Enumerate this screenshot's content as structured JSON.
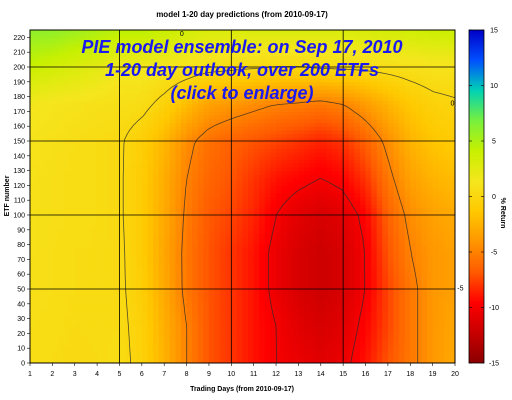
{
  "chart_data": {
    "type": "heatmap",
    "title": "model 1-20 day predictions (from 2010-09-17)",
    "xlabel": "Trading Days (from 2010-09-17)",
    "ylabel": "ETF number",
    "colorbar_label": "% Return",
    "xlim": [
      1,
      20
    ],
    "ylim": [
      0,
      225
    ],
    "x_ticks": [
      1,
      2,
      3,
      4,
      5,
      6,
      7,
      8,
      9,
      10,
      11,
      12,
      13,
      14,
      15,
      16,
      17,
      18,
      19,
      20
    ],
    "y_ticks": [
      0,
      10,
      20,
      30,
      40,
      50,
      60,
      70,
      80,
      90,
      100,
      110,
      120,
      130,
      140,
      150,
      160,
      170,
      180,
      190,
      200,
      210,
      220
    ],
    "colorbar_range": [
      -15,
      15
    ],
    "colorbar_ticks": [
      15,
      10,
      5,
      0,
      -5,
      -10,
      -15
    ],
    "color_scale": [
      "#8b0000",
      "#c80000",
      "#ff0000",
      "#ff5a00",
      "#ff9600",
      "#ffc800",
      "#f5e61e",
      "#c8f000",
      "#78f03c",
      "#00d2b4",
      "#0050ff",
      "#0000c8"
    ],
    "grid_x": [
      5,
      10,
      15
    ],
    "grid_y": [
      50,
      100,
      150,
      200
    ],
    "contour_labels": [
      "0",
      "0",
      "-5"
    ],
    "grid_values": {
      "x": [
        1,
        2,
        3,
        4,
        5,
        6,
        7,
        8,
        9,
        10,
        11,
        12,
        13,
        14,
        15,
        16,
        17,
        18,
        19,
        20
      ],
      "y": [
        0,
        25,
        50,
        75,
        100,
        125,
        150,
        175,
        200,
        225
      ],
      "z": [
        [
          0.5,
          0.4,
          0.2,
          0.3,
          0.5,
          -0.5,
          -2.5,
          -5,
          -7,
          -8,
          -9,
          -10,
          -10.5,
          -11,
          -10.5,
          -9,
          -7,
          -5.5,
          -4,
          -3
        ],
        [
          0.6,
          0.5,
          0.3,
          0.4,
          0.4,
          -0.6,
          -2.7,
          -5,
          -7,
          -8,
          -9,
          -10,
          -11,
          -11.5,
          -11,
          -9.5,
          -7.5,
          -5.5,
          -4,
          -3.2
        ],
        [
          0.7,
          0.6,
          0.4,
          0.4,
          0.3,
          -0.8,
          -3,
          -5.5,
          -7,
          -8,
          -9,
          -10.5,
          -11.5,
          -12,
          -11.5,
          -10,
          -7.5,
          -5.5,
          -4,
          -3.5
        ],
        [
          0.8,
          0.6,
          0.4,
          0.4,
          0.3,
          -1,
          -3.2,
          -5.5,
          -7,
          -8,
          -9,
          -10.5,
          -11.5,
          -12,
          -11.5,
          -10,
          -7,
          -5,
          -4,
          -3.5
        ],
        [
          0.8,
          0.7,
          0.5,
          0.4,
          0.2,
          -1,
          -3,
          -5.3,
          -6.8,
          -7.5,
          -8.5,
          -10,
          -11,
          -11.5,
          -11,
          -9.5,
          -6.5,
          -4.5,
          -3.5,
          -3
        ],
        [
          0.9,
          0.7,
          0.5,
          0.4,
          0.2,
          -1,
          -2.8,
          -5,
          -6.3,
          -7,
          -8,
          -9,
          -9.5,
          -10,
          -9.5,
          -8,
          -5.5,
          -3.5,
          -2.5,
          -2
        ],
        [
          1,
          0.8,
          0.6,
          0.4,
          0.2,
          -0.8,
          -2.3,
          -4.5,
          -5.8,
          -6.5,
          -7,
          -7.5,
          -8,
          -8.5,
          -8,
          -6.5,
          -4.5,
          -2.5,
          -1.5,
          -1
        ],
        [
          1.5,
          1.2,
          1,
          0.8,
          0.7,
          0.5,
          -0.5,
          -2,
          -3.5,
          -4,
          -4.5,
          -5,
          -5.2,
          -5.5,
          -5,
          -3.8,
          -2.5,
          -1.3,
          -0.5,
          -0.2
        ],
        [
          4,
          3.5,
          3,
          2.5,
          1.5,
          1.5,
          1.3,
          1,
          0.6,
          0.4,
          0.2,
          0,
          0,
          0.2,
          0.3,
          0.4,
          0.6,
          0.8,
          1,
          1
        ],
        [
          6,
          6,
          5.5,
          5,
          4.5,
          4.5,
          4,
          3.5,
          3,
          3,
          3,
          3,
          3,
          3,
          3,
          3.2,
          3.4,
          3.6,
          3.8,
          4
        ]
      ]
    },
    "overlay_lines": [
      "PIE model ensemble: on Sep 17, 2010",
      "1-20 day outlook, over 200 ETFs",
      "(click to enlarge)"
    ]
  }
}
